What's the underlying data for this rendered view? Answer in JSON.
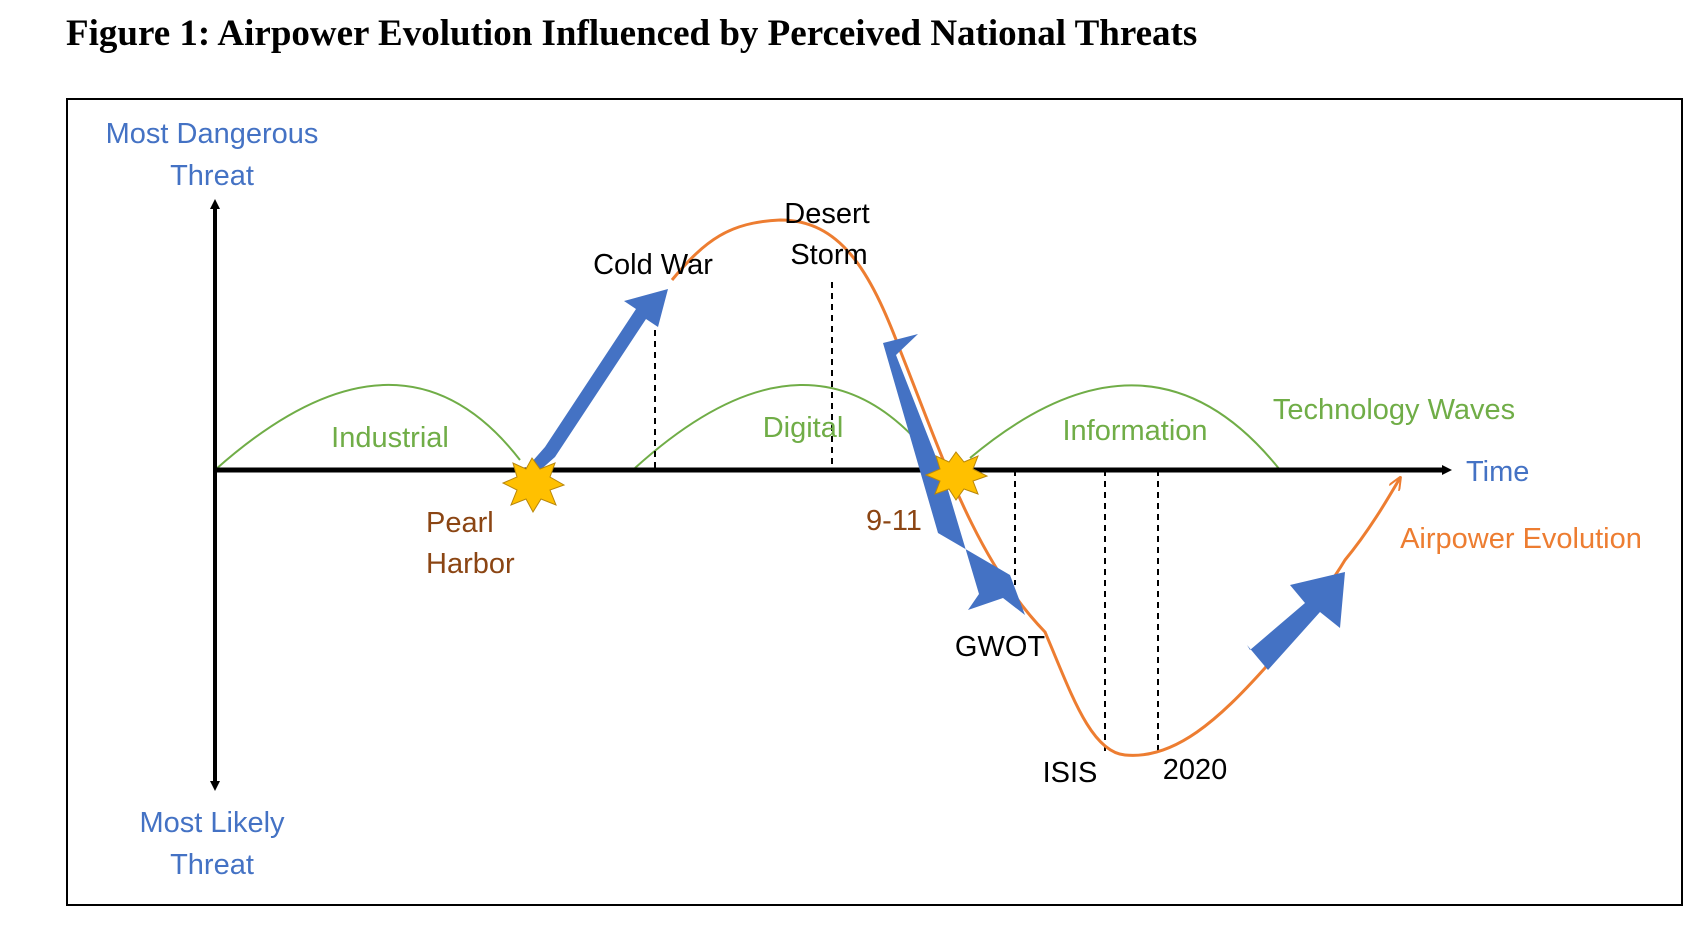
{
  "title": "Figure 1: Airpower Evolution Influenced by Perceived National Threats",
  "axes": {
    "y_top_line1": "Most Dangerous",
    "y_top_line2": "Threat",
    "y_bottom_line1": "Most Likely",
    "y_bottom_line2": "Threat",
    "x_label": "Time"
  },
  "technology_waves": {
    "label": "Technology Waves",
    "waves": [
      "Industrial",
      "Digital",
      "Information"
    ]
  },
  "airpower": {
    "label": "Airpower Evolution",
    "events": {
      "cold_war": "Cold War",
      "desert_storm_line1": "Desert",
      "desert_storm_line2": "Storm",
      "gwot": "GWOT",
      "isis": "ISIS",
      "year_2020": "2020"
    }
  },
  "shocks": {
    "pearl_harbor_line1": "Pearl",
    "pearl_harbor_line2": "Harbor",
    "nine_eleven": "9-11"
  },
  "colors": {
    "axis_label": "#4472C4",
    "wave": "#70AD47",
    "airpower": "#ED7D31",
    "shock_label": "#8B4513",
    "arrow_fill": "#4472C4",
    "burst_fill": "#FFC000"
  }
}
